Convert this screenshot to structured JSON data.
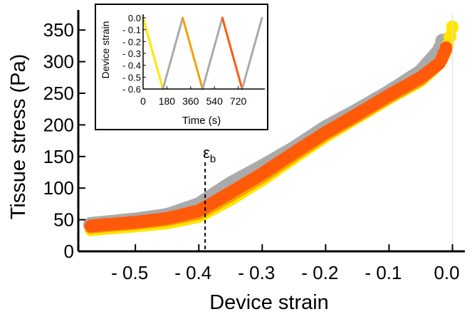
{
  "chart_data": [
    {
      "type": "scatter",
      "role": "main",
      "xlabel": "Device strain",
      "ylabel": "Tissue stress (Pa)",
      "xlim": [
        -0.59,
        0.005
      ],
      "ylim": [
        0,
        375
      ],
      "x_ticks": [
        -0.5,
        -0.4,
        -0.3,
        -0.2,
        -0.1,
        0.0
      ],
      "x_tick_labels": [
        "- 0.5",
        "- 0.4",
        "- 0.3",
        "- 0.2",
        "- 0.1",
        "0.0"
      ],
      "y_ticks": [
        0,
        50,
        100,
        150,
        200,
        250,
        300,
        350
      ],
      "y_tick_labels": [
        "0",
        "50",
        "100",
        "150",
        "200",
        "250",
        "300",
        "350"
      ],
      "grid": false,
      "annotation": {
        "label": "ε",
        "subscript": "b",
        "x": -0.39,
        "style": "dashed vertical line"
      },
      "series": [
        {
          "color": "#aaaaaa",
          "x": [
            -0.57,
            -0.55,
            -0.5,
            -0.45,
            -0.4,
            -0.35,
            -0.3,
            -0.25,
            -0.2,
            -0.15,
            -0.1,
            -0.05,
            -0.02,
            -0.015
          ],
          "y": [
            42,
            44,
            49,
            56,
            73,
            106,
            133,
            162,
            195,
            222,
            251,
            283,
            317,
            332
          ]
        },
        {
          "color": "#ffe600",
          "x": [
            -0.57,
            -0.55,
            -0.5,
            -0.45,
            -0.4,
            -0.35,
            -0.3,
            -0.25,
            -0.2,
            -0.15,
            -0.1,
            -0.05,
            -0.02,
            -0.01,
            -0.005,
            0.0
          ],
          "y": [
            34,
            36,
            40,
            45,
            55,
            82,
            113,
            148,
            182,
            212,
            242,
            270,
            298,
            318,
            335,
            355
          ]
        },
        {
          "color": "#f5a000",
          "x": [
            -0.57,
            -0.55,
            -0.5,
            -0.45,
            -0.4,
            -0.35,
            -0.3,
            -0.25,
            -0.2,
            -0.15,
            -0.1,
            -0.05,
            -0.02,
            -0.01
          ],
          "y": [
            38,
            40,
            44,
            50,
            60,
            88,
            118,
            152,
            185,
            214,
            244,
            272,
            298,
            318
          ]
        },
        {
          "color": "#ff5a0a",
          "x": [
            -0.57,
            -0.55,
            -0.5,
            -0.45,
            -0.4,
            -0.35,
            -0.3,
            -0.25,
            -0.2,
            -0.15,
            -0.1,
            -0.05,
            -0.02,
            -0.015,
            -0.01
          ],
          "y": [
            40,
            42,
            46,
            52,
            64,
            93,
            123,
            156,
            188,
            217,
            247,
            275,
            298,
            310,
            322
          ]
        }
      ]
    },
    {
      "type": "line",
      "role": "inset",
      "xlabel": "Time (s)",
      "ylabel": "Device strain",
      "xlim": [
        0,
        900
      ],
      "ylim": [
        -0.6,
        0.0
      ],
      "x_ticks": [
        0,
        180,
        360,
        540,
        720
      ],
      "x_tick_labels": [
        "0",
        "180",
        "360",
        "540",
        "720"
      ],
      "y_ticks": [
        0.0,
        -0.1,
        -0.2,
        -0.3,
        -0.4,
        -0.5,
        -0.6
      ],
      "y_tick_labels": [
        "0.0",
        "- 0.1",
        "- 0.2",
        "- 0.3",
        "- 0.4",
        "- 0.5",
        "- 0.6"
      ],
      "grid": false,
      "segments": [
        {
          "color": "#ffe600",
          "x": [
            0,
            150
          ],
          "y": [
            0.0,
            -0.6
          ]
        },
        {
          "color": "#aaaaaa",
          "x": [
            150,
            300
          ],
          "y": [
            -0.6,
            0.0
          ]
        },
        {
          "color": "#f5a000",
          "x": [
            300,
            450
          ],
          "y": [
            0.0,
            -0.6
          ]
        },
        {
          "color": "#aaaaaa",
          "x": [
            450,
            600
          ],
          "y": [
            -0.6,
            0.0
          ]
        },
        {
          "color": "#ff5a0a",
          "x": [
            600,
            750
          ],
          "y": [
            0.0,
            -0.6
          ]
        },
        {
          "color": "#aaaaaa",
          "x": [
            750,
            900
          ],
          "y": [
            -0.6,
            0.0
          ]
        }
      ]
    }
  ]
}
